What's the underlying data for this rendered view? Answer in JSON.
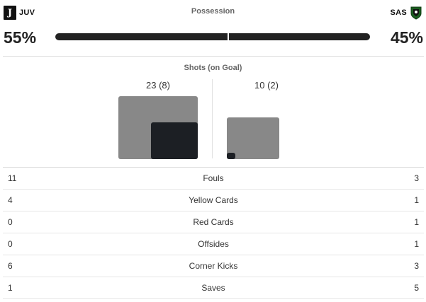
{
  "teams": {
    "home": {
      "abbr": "JUV",
      "logo_glyph": "J",
      "possession": "55%"
    },
    "away": {
      "abbr": "SAS",
      "possession": "45%"
    }
  },
  "possession": {
    "label": "Possession",
    "home_fraction": 0.55,
    "away_fraction": 0.45,
    "bar_color": "#222222"
  },
  "shots": {
    "title": "Shots (on Goal)",
    "home": {
      "display": "23 (8)",
      "total": 23,
      "on_goal": 8
    },
    "away": {
      "display": "10 (2)",
      "total": 10,
      "on_goal": 2
    },
    "colors": {
      "total": "#888888",
      "on_goal": "#1c1f24"
    }
  },
  "stats": [
    {
      "label": "Fouls",
      "home": "11",
      "away": "3"
    },
    {
      "label": "Yellow Cards",
      "home": "4",
      "away": "1"
    },
    {
      "label": "Red Cards",
      "home": "0",
      "away": "1"
    },
    {
      "label": "Offsides",
      "home": "0",
      "away": "1"
    },
    {
      "label": "Corner Kicks",
      "home": "6",
      "away": "3"
    },
    {
      "label": "Saves",
      "home": "1",
      "away": "5"
    }
  ]
}
